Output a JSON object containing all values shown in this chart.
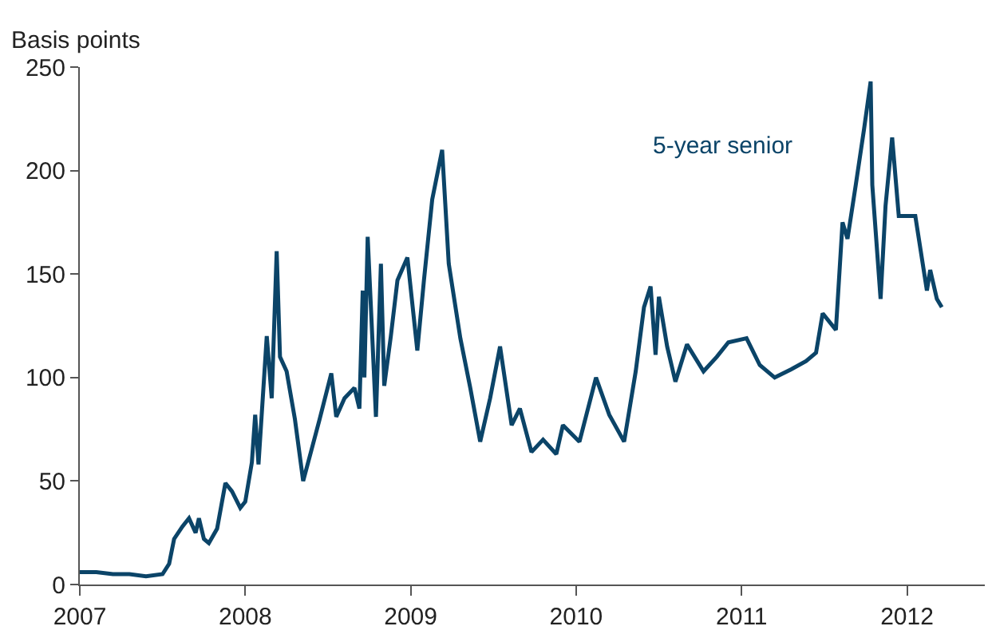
{
  "chart_data": {
    "type": "line",
    "ylabel": "Basis points",
    "annotations": [
      "5-year senior"
    ],
    "x": [
      2007.0,
      2007.1,
      2007.2,
      2007.3,
      2007.4,
      2007.5,
      2007.54,
      2007.57,
      2007.62,
      2007.66,
      2007.7,
      2007.72,
      2007.75,
      2007.78,
      2007.83,
      2007.88,
      2007.92,
      2007.97,
      2008.0,
      2008.04,
      2008.06,
      2008.08,
      2008.13,
      2008.16,
      2008.19,
      2008.21,
      2008.25,
      2008.3,
      2008.35,
      2008.4,
      2008.45,
      2008.52,
      2008.55,
      2008.6,
      2008.66,
      2008.69,
      2008.71,
      2008.72,
      2008.74,
      2008.79,
      2008.82,
      2008.84,
      2008.88,
      2008.92,
      2008.98,
      2009.04,
      2009.08,
      2009.13,
      2009.19,
      2009.23,
      2009.3,
      2009.36,
      2009.42,
      2009.48,
      2009.54,
      2009.61,
      2009.66,
      2009.73,
      2009.8,
      2009.88,
      2009.92,
      2010.02,
      2010.12,
      2010.2,
      2010.29,
      2010.36,
      2010.41,
      2010.45,
      2010.48,
      2010.5,
      2010.55,
      2010.6,
      2010.67,
      2010.77,
      2010.85,
      2010.92,
      2011.03,
      2011.11,
      2011.2,
      2011.3,
      2011.39,
      2011.45,
      2011.49,
      2011.57,
      2011.61,
      2011.64,
      2011.69,
      2011.74,
      2011.78,
      2011.79,
      2011.84,
      2011.87,
      2011.91,
      2011.95,
      2012.05,
      2012.12,
      2012.14,
      2012.18,
      2012.21
    ],
    "series": [
      {
        "color": "#0b4468",
        "values": [
          6,
          6,
          5,
          5,
          4,
          5,
          10,
          22,
          28,
          32,
          25,
          32,
          22,
          20,
          27,
          49,
          45,
          37,
          40,
          59,
          82,
          58,
          120,
          90,
          161,
          110,
          103,
          80,
          50,
          65,
          80,
          102,
          81,
          90,
          95,
          85,
          142,
          100,
          168,
          81,
          155,
          96,
          120,
          147,
          158,
          113,
          147,
          186,
          210,
          155,
          119,
          95,
          69,
          90,
          115,
          77,
          85,
          64,
          70,
          63,
          77,
          69,
          100,
          82,
          69,
          103,
          134,
          144,
          111,
          139,
          115,
          98,
          116,
          103,
          110,
          117,
          119,
          106,
          100,
          104,
          108,
          112,
          131,
          123,
          175,
          167,
          193,
          220,
          243,
          193,
          138,
          183,
          216,
          178,
          178,
          142,
          152,
          138,
          134
        ]
      }
    ],
    "xlim": [
      2007,
      2012.47
    ],
    "xticks": [
      {
        "value": 2007,
        "label": "2007"
      },
      {
        "value": 2008,
        "label": "2008"
      },
      {
        "value": 2009,
        "label": "2009"
      },
      {
        "value": 2010,
        "label": "2010"
      },
      {
        "value": 2011,
        "label": "2011"
      },
      {
        "value": 2012,
        "label": "2012"
      }
    ],
    "ylim": [
      0,
      250
    ],
    "yticks": [
      0,
      50,
      100,
      150,
      200,
      250
    ]
  }
}
